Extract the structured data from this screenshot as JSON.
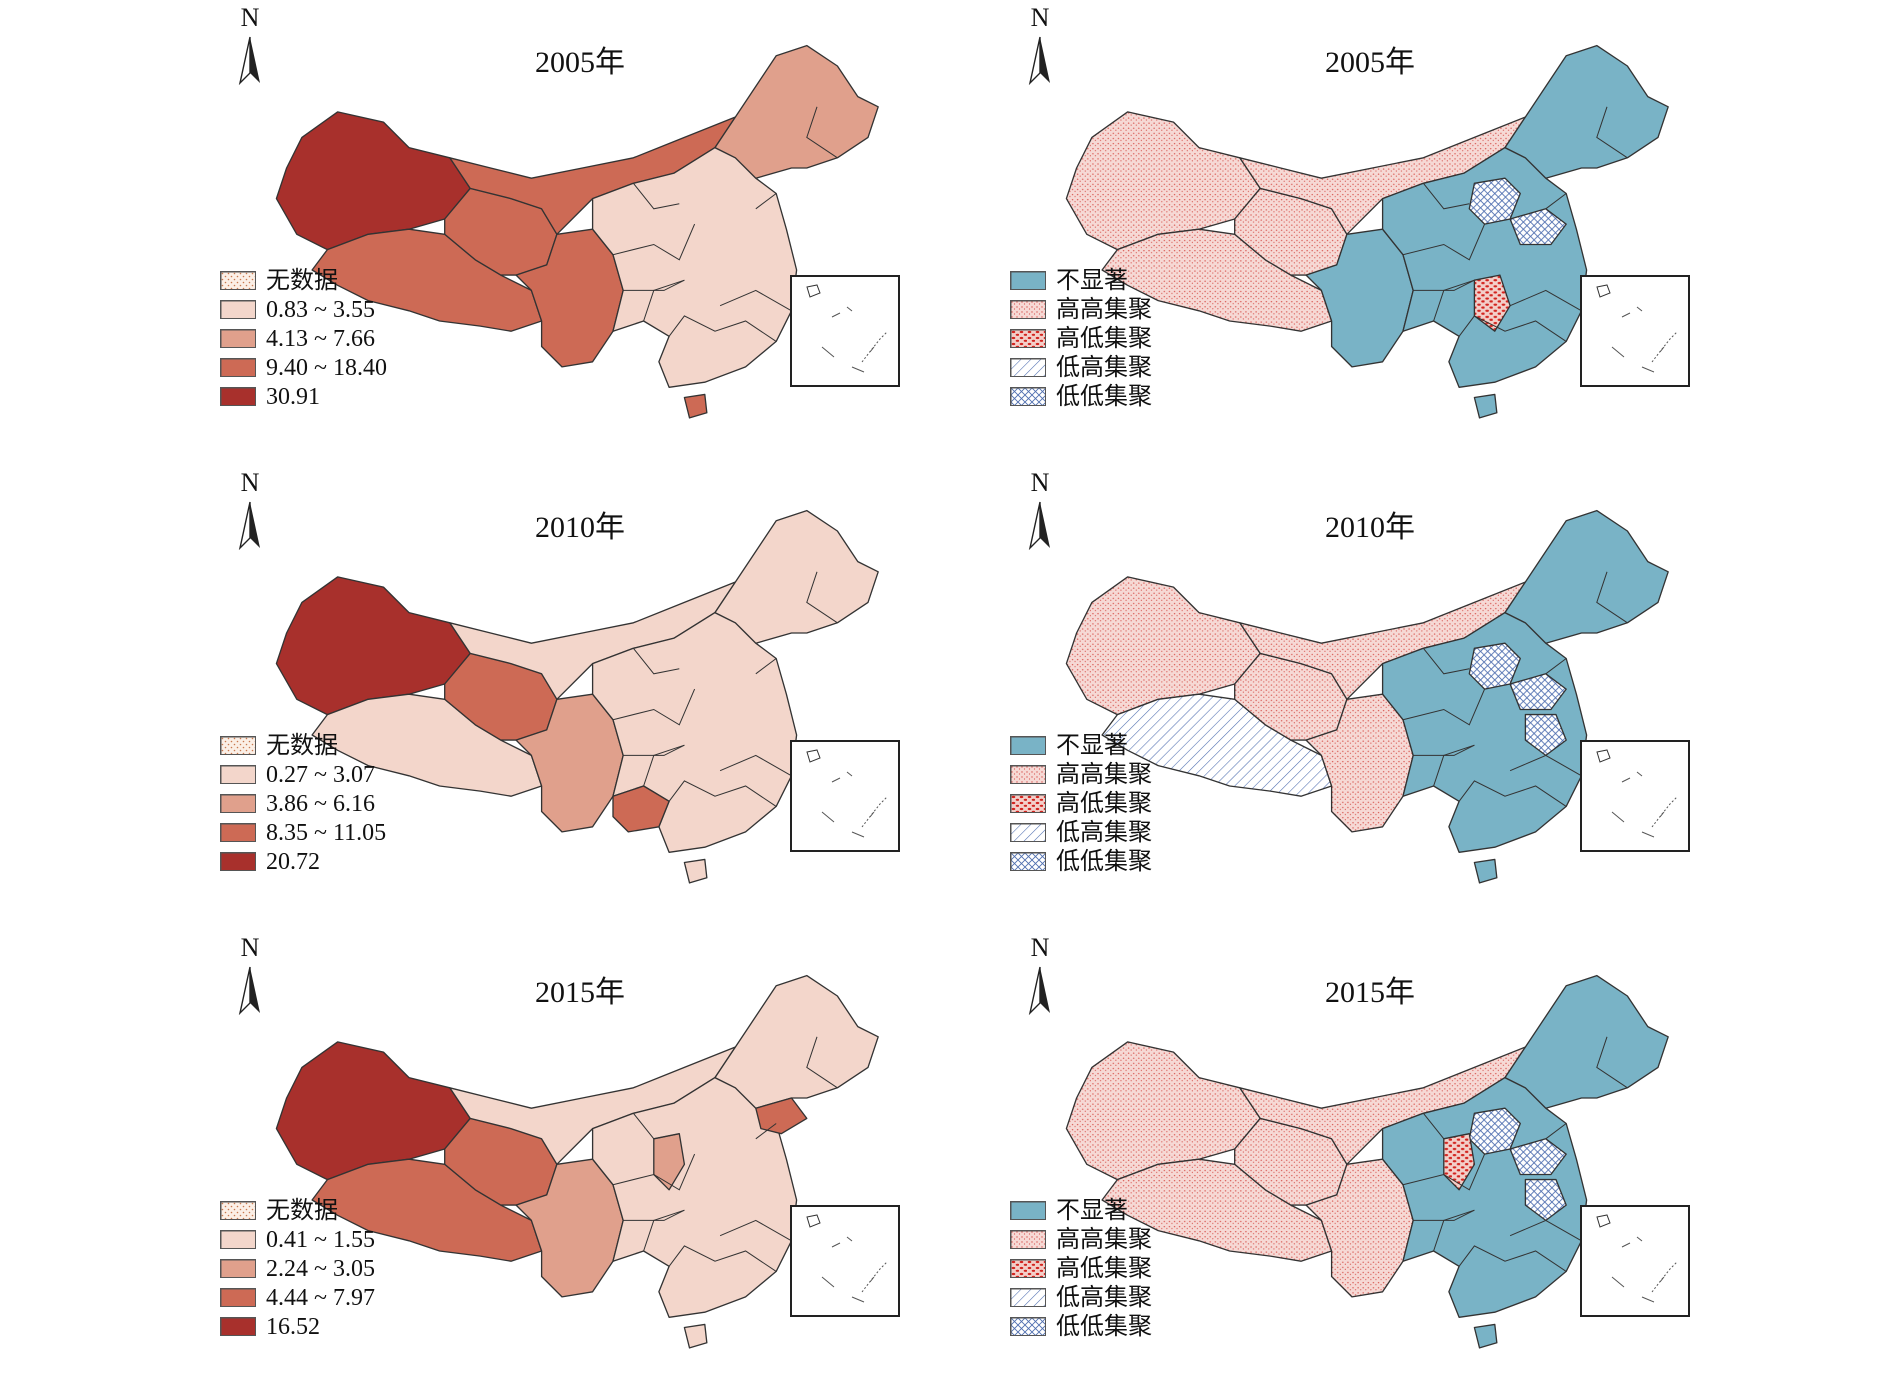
{
  "north_label": "N",
  "panels": [
    {
      "id": "value-2005",
      "kind": "value",
      "title": "2005年",
      "legend": [
        {
          "label": "无数据",
          "fill": "nodata"
        },
        {
          "label": "0.83 ~ 3.55",
          "fill": "#f3d6cb"
        },
        {
          "label": "4.13 ~ 7.66",
          "fill": "#e0a08c"
        },
        {
          "label": "9.40 ~ 18.40",
          "fill": "#cd6a55"
        },
        {
          "label": "30.91",
          "fill": "#a8302c"
        }
      ],
      "region_classes": {
        "xinjiang": 4,
        "tibet": 3,
        "qinghai": 3,
        "gansu_nm": 3,
        "west_south": 3,
        "east": 1,
        "northeast": 2,
        "hainan": 3
      }
    },
    {
      "id": "lisa-2005",
      "kind": "lisa",
      "title": "2005年",
      "legend": [
        {
          "label": "不显著",
          "fill": "ns"
        },
        {
          "label": "高高集聚",
          "fill": "hh"
        },
        {
          "label": "高低集聚",
          "fill": "hl"
        },
        {
          "label": "低高集聚",
          "fill": "lh"
        },
        {
          "label": "低低集聚",
          "fill": "ll"
        }
      ],
      "region_classes": {
        "xinjiang": "hh",
        "tibet": "hh",
        "qinghai": "hh",
        "gansu_nm": "hh",
        "west_south": "ns",
        "east": "ns",
        "northeast": "ns",
        "hainan": "ns",
        "hebei": "ll",
        "shandong": "ll",
        "jiangxi": "hl"
      }
    },
    {
      "id": "value-2010",
      "kind": "value",
      "title": "2010年",
      "legend": [
        {
          "label": "无数据",
          "fill": "nodata"
        },
        {
          "label": "0.27 ~ 3.07",
          "fill": "#f3d6cb"
        },
        {
          "label": "3.86 ~ 6.16",
          "fill": "#e0a08c"
        },
        {
          "label": "8.35 ~ 11.05",
          "fill": "#cd6a55"
        },
        {
          "label": "20.72",
          "fill": "#a8302c"
        }
      ],
      "region_classes": {
        "xinjiang": 4,
        "tibet": 1,
        "qinghai": 3,
        "gansu_nm": 1,
        "west_south": 2,
        "east": 1,
        "northeast": 1,
        "hainan": 1,
        "guizhou": 3
      }
    },
    {
      "id": "lisa-2010",
      "kind": "lisa",
      "title": "2010年",
      "legend": [
        {
          "label": "不显著",
          "fill": "ns"
        },
        {
          "label": "高高集聚",
          "fill": "hh"
        },
        {
          "label": "高低集聚",
          "fill": "hl"
        },
        {
          "label": "低高集聚",
          "fill": "lh"
        },
        {
          "label": "低低集聚",
          "fill": "ll"
        }
      ],
      "region_classes": {
        "xinjiang": "hh",
        "tibet": "lh",
        "qinghai": "hh",
        "gansu_nm": "hh",
        "west_south": "hh",
        "east": "ns",
        "northeast": "ns",
        "hainan": "ns",
        "hebei": "ll",
        "shandong": "ll",
        "jiangsu": "ll"
      }
    },
    {
      "id": "value-2015",
      "kind": "value",
      "title": "2015年",
      "legend": [
        {
          "label": "无数据",
          "fill": "nodata"
        },
        {
          "label": "0.41 ~ 1.55",
          "fill": "#f3d6cb"
        },
        {
          "label": "2.24 ~ 3.05",
          "fill": "#e0a08c"
        },
        {
          "label": "4.44 ~ 7.97",
          "fill": "#cd6a55"
        },
        {
          "label": "16.52",
          "fill": "#a8302c"
        }
      ],
      "region_classes": {
        "xinjiang": 4,
        "tibet": 3,
        "qinghai": 3,
        "gansu_nm": 1,
        "west_south": 2,
        "east": 1,
        "northeast": 1,
        "hainan": 1,
        "liaoning": 3,
        "shanxi": 2
      }
    },
    {
      "id": "lisa-2015",
      "kind": "lisa",
      "title": "2015年",
      "legend": [
        {
          "label": "不显著",
          "fill": "ns"
        },
        {
          "label": "高高集聚",
          "fill": "hh"
        },
        {
          "label": "高低集聚",
          "fill": "hl"
        },
        {
          "label": "低高集聚",
          "fill": "lh"
        },
        {
          "label": "低低集聚",
          "fill": "ll"
        }
      ],
      "region_classes": {
        "xinjiang": "hh",
        "tibet": "hh",
        "qinghai": "hh",
        "gansu_nm": "hh",
        "west_south": "hh",
        "east": "ns",
        "northeast": "ns",
        "hainan": "ns",
        "shanxi": "hl",
        "shandong": "ll",
        "hebei": "ll",
        "jiangsu": "ll"
      }
    }
  ]
}
